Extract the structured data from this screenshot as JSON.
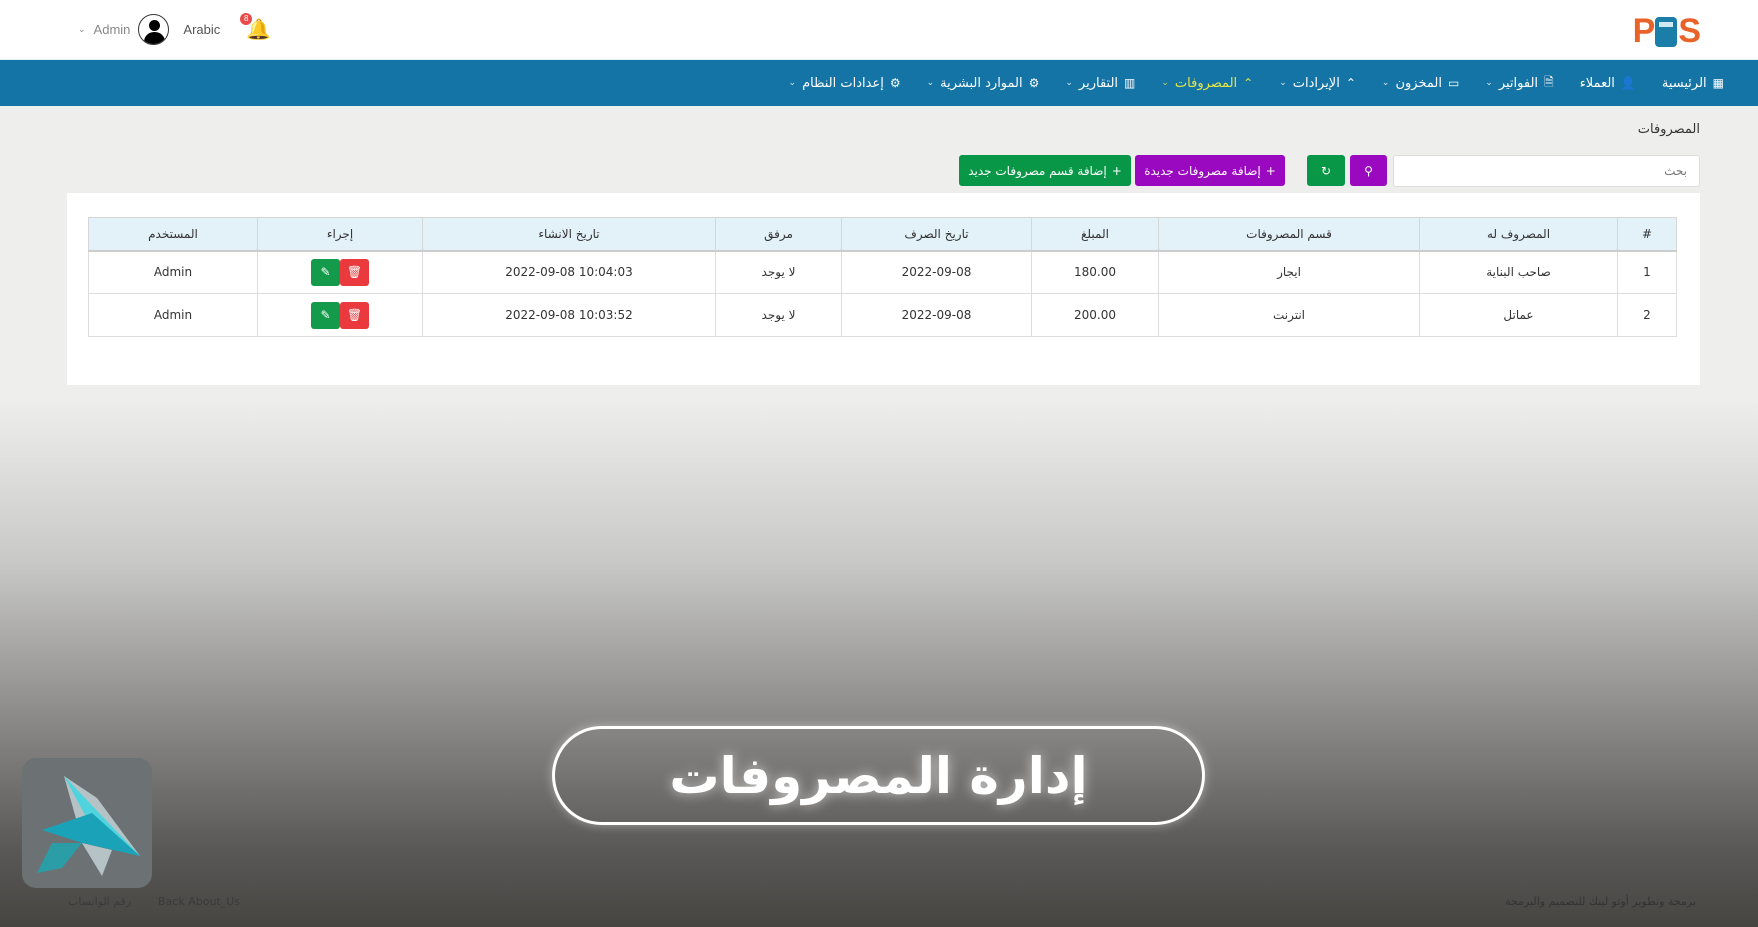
{
  "header": {
    "logo": "POS",
    "user": "Admin",
    "language": "Arabic",
    "notifications": "8"
  },
  "nav": [
    {
      "label": "الرئيسية",
      "icon": "dashboard-icon",
      "dropdown": false
    },
    {
      "label": "العملاء",
      "icon": "user-icon",
      "dropdown": false
    },
    {
      "label": "الفواتير",
      "icon": "file-icon",
      "dropdown": true
    },
    {
      "label": "المخزون",
      "icon": "store-icon",
      "dropdown": true
    },
    {
      "label": "الإيرادات",
      "icon": "chevrons-up-icon",
      "dropdown": true
    },
    {
      "label": "المصروفات",
      "icon": "chevrons-up-icon",
      "dropdown": true,
      "active": true
    },
    {
      "label": "التقارير",
      "icon": "chart-icon",
      "dropdown": true
    },
    {
      "label": "الموارد البشرية",
      "icon": "gear-icon",
      "dropdown": true
    },
    {
      "label": "إعدادات النظام",
      "icon": "gear-icon",
      "dropdown": true
    }
  ],
  "page": {
    "title": "المصروفات",
    "search_placeholder": "بحث",
    "add_expense": "إضافة مصروفات جديدة",
    "add_category": "إضافة قسم مصروفات جديد"
  },
  "table": {
    "headers": [
      "#",
      "المصروف له",
      "قسم المصروفات",
      "المبلغ",
      "تاريخ الصرف",
      "مرفق",
      "تاريخ الانشاء",
      "إجراء",
      "المستخدم"
    ],
    "rows": [
      [
        "1",
        "صاحب البناية",
        "ايجار",
        "180.00",
        "2022-09-08",
        "لا يوجد",
        "10:04:03 2022-09-08",
        "",
        "Admin"
      ],
      [
        "2",
        "عماتل",
        "انترنت",
        "200.00",
        "2022-09-08",
        "لا يوجد",
        "10:03:52 2022-09-08",
        "",
        "Admin"
      ]
    ]
  },
  "banner": "إدارة المصروفات",
  "footer": {
    "whatsapp": "رقم الواتساب",
    "about": "Back About_Us",
    "credit": "برمجة وتطوير أوتو لينك للتصميم والبرمجة"
  },
  "colors": {
    "nav": "#1474a6",
    "active": "#e8e645",
    "purple": "#9a08bf",
    "green": "#089747",
    "delete": "#ea3a3e",
    "logo": "#e8622a"
  }
}
